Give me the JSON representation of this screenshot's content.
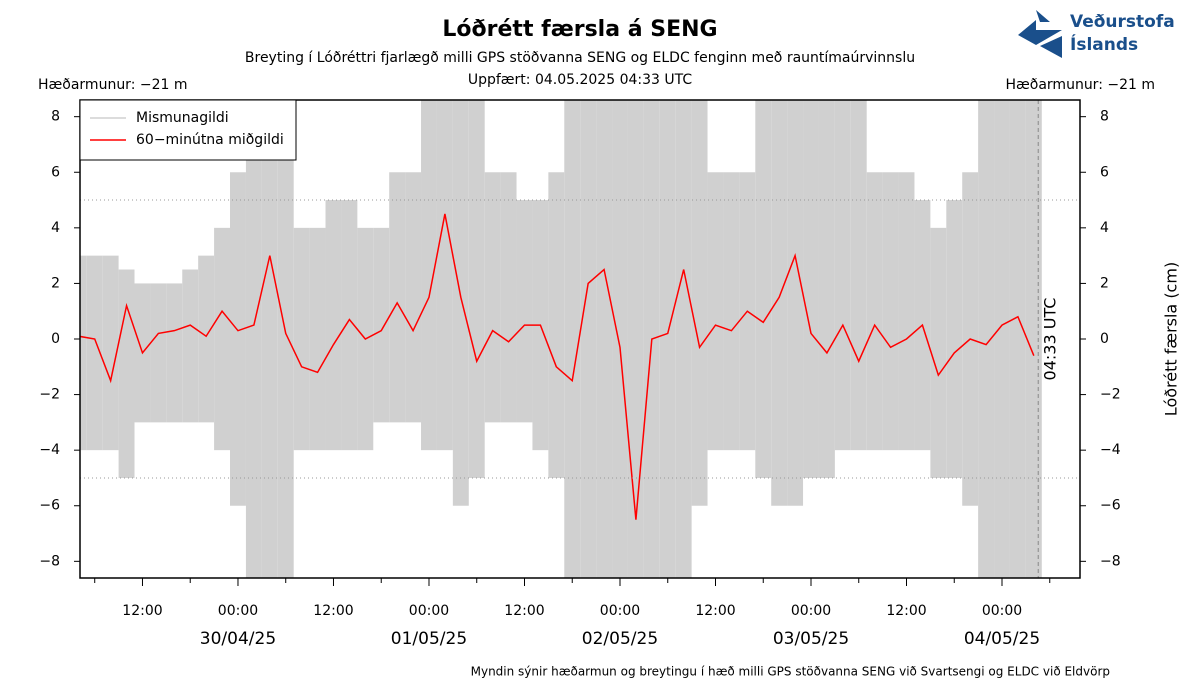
{
  "chart_data": {
    "type": "line",
    "title": "Lóðrétt færsla á SENG",
    "subtitle": "Breyting í Lóðréttri fjarlægð milli GPS stöðvanna SENG og ELDC fenginn með rauntímaúrvinnslu",
    "updated": "Uppfært: 04.05.2025 04:33 UTC",
    "left_note": "Hæðarmunur: −21 m",
    "right_note": "Hæðarmunur: −21 m",
    "y2_label": "Lóðrétt færsla (cm)",
    "footer": "Myndin sýnir hæðarmun og breytingu í hæð milli GPS stöðvanna SENG við Svartsengi og ELDC við Eldvörp",
    "logo": [
      "Veðurstofa",
      "Íslands"
    ],
    "now_marker": {
      "x": "2025-05-04T04:33",
      "label": "04:33 UTC"
    },
    "legend": "upper left",
    "xlim": [
      "2025-04-29T04:09",
      "2025-05-04T09:48"
    ],
    "xticks": [
      {
        "value": "2025-04-29T12:00",
        "label": "12:00"
      },
      {
        "value": "2025-04-30T00:00",
        "label": "00:00"
      },
      {
        "value": "2025-04-30T12:00",
        "label": "12:00"
      },
      {
        "value": "2025-05-01T00:00",
        "label": "00:00"
      },
      {
        "value": "2025-05-01T12:00",
        "label": "12:00"
      },
      {
        "value": "2025-05-02T00:00",
        "label": "00:00"
      },
      {
        "value": "2025-05-02T12:00",
        "label": "12:00"
      },
      {
        "value": "2025-05-03T00:00",
        "label": "00:00"
      },
      {
        "value": "2025-05-03T12:00",
        "label": "12:00"
      },
      {
        "value": "2025-05-04T00:00",
        "label": "00:00"
      }
    ],
    "xminorticks": [
      "2025-04-29T06:00",
      "2025-04-29T18:00",
      "2025-04-30T06:00",
      "2025-04-30T18:00",
      "2025-05-01T06:00",
      "2025-05-01T18:00",
      "2025-05-02T06:00",
      "2025-05-02T18:00",
      "2025-05-03T06:00",
      "2025-05-03T18:00",
      "2025-05-04T06:00"
    ],
    "date_labels": [
      {
        "value": "2025-04-30T00:00",
        "label": "30/04/25"
      },
      {
        "value": "2025-05-01T00:00",
        "label": "01/05/25"
      },
      {
        "value": "2025-05-02T00:00",
        "label": "02/05/25"
      },
      {
        "value": "2025-05-03T00:00",
        "label": "03/05/25"
      },
      {
        "value": "2025-05-04T00:00",
        "label": "04/05/25"
      }
    ],
    "ylim": [
      -8.6,
      8.6
    ],
    "yticks": [
      {
        "value": -8,
        "label": "−8"
      },
      {
        "value": -6,
        "label": "−6"
      },
      {
        "value": -4,
        "label": "−4"
      },
      {
        "value": -2,
        "label": "−2"
      },
      0,
      2,
      4,
      6,
      8
    ],
    "ref_lines": [
      5,
      -5
    ],
    "x": [
      "2025-04-29T04:00",
      "2025-04-29T06:00",
      "2025-04-29T08:00",
      "2025-04-29T10:00",
      "2025-04-29T12:00",
      "2025-04-29T14:00",
      "2025-04-29T16:00",
      "2025-04-29T18:00",
      "2025-04-29T20:00",
      "2025-04-29T22:00",
      "2025-04-30T00:00",
      "2025-04-30T02:00",
      "2025-04-30T04:00",
      "2025-04-30T06:00",
      "2025-04-30T08:00",
      "2025-04-30T10:00",
      "2025-04-30T12:00",
      "2025-04-30T14:00",
      "2025-04-30T16:00",
      "2025-04-30T18:00",
      "2025-04-30T20:00",
      "2025-04-30T22:00",
      "2025-05-01T00:00",
      "2025-05-01T02:00",
      "2025-05-01T04:00",
      "2025-05-01T06:00",
      "2025-05-01T08:00",
      "2025-05-01T10:00",
      "2025-05-01T12:00",
      "2025-05-01T14:00",
      "2025-05-01T16:00",
      "2025-05-01T18:00",
      "2025-05-01T20:00",
      "2025-05-01T22:00",
      "2025-05-02T00:00",
      "2025-05-02T02:00",
      "2025-05-02T04:00",
      "2025-05-02T06:00",
      "2025-05-02T08:00",
      "2025-05-02T10:00",
      "2025-05-02T12:00",
      "2025-05-02T14:00",
      "2025-05-02T16:00",
      "2025-05-02T18:00",
      "2025-05-02T20:00",
      "2025-05-02T22:00",
      "2025-05-03T00:00",
      "2025-05-03T02:00",
      "2025-05-03T04:00",
      "2025-05-03T06:00",
      "2025-05-03T08:00",
      "2025-05-03T10:00",
      "2025-05-03T12:00",
      "2025-05-03T14:00",
      "2025-05-03T16:00",
      "2025-05-03T18:00",
      "2025-05-03T20:00",
      "2025-05-03T22:00",
      "2025-05-04T00:00",
      "2025-05-04T02:00",
      "2025-05-04T04:00"
    ],
    "series": [
      {
        "name": "Mismunagildi",
        "color": "#d0d0d0",
        "low": [
          -4,
          -4,
          -4,
          -5,
          -3,
          -3,
          -3,
          -3,
          -3,
          -4,
          -6,
          -9,
          -9,
          -9,
          -4,
          -4,
          -4,
          -4,
          -4,
          -3,
          -3,
          -3,
          -4,
          -4,
          -6,
          -5,
          -3,
          -3,
          -3,
          -4,
          -5,
          -9,
          -9,
          -9,
          -9,
          -9,
          -9,
          -9,
          -9,
          -6,
          -4,
          -4,
          -4,
          -5,
          -6,
          -6,
          -5,
          -5,
          -4,
          -4,
          -4,
          -4,
          -4,
          -4,
          -5,
          -5,
          -6,
          -9,
          -9,
          -9,
          -9
        ],
        "high": [
          3,
          3,
          3,
          2.5,
          2,
          2,
          2,
          2.5,
          3,
          4,
          6,
          9,
          9,
          9,
          4,
          4,
          5,
          5,
          4,
          4,
          6,
          6,
          9,
          9,
          9,
          9,
          6,
          6,
          5,
          5,
          6,
          9,
          9,
          9,
          9,
          9,
          9,
          9,
          9,
          9,
          6,
          6,
          6,
          9,
          9,
          9,
          9,
          9,
          9,
          9,
          6,
          6,
          6,
          5,
          4,
          5,
          6,
          9,
          9,
          9,
          9
        ]
      },
      {
        "name": "60−minútna miðgildi",
        "color": "#ff0000",
        "values": [
          0.1,
          0.0,
          -1.5,
          1.2,
          -0.5,
          0.2,
          0.3,
          0.5,
          0.1,
          1.0,
          0.3,
          0.5,
          3.0,
          0.2,
          -1.0,
          -1.2,
          -0.2,
          0.7,
          0.0,
          0.3,
          1.3,
          0.3,
          1.5,
          4.5,
          1.5,
          -0.8,
          0.3,
          -0.1,
          0.5,
          0.5,
          -1.0,
          -1.5,
          2.0,
          2.5,
          -0.3,
          -6.5,
          0.0,
          0.2,
          2.5,
          -0.3,
          0.5,
          0.3,
          1.0,
          0.6,
          1.5,
          3.0,
          0.2,
          -0.5,
          0.5,
          -0.8,
          0.5,
          -0.3,
          0.0,
          0.5,
          -1.3,
          -0.5,
          0.0,
          -0.2,
          0.5,
          0.8,
          -0.6
        ]
      }
    ]
  }
}
